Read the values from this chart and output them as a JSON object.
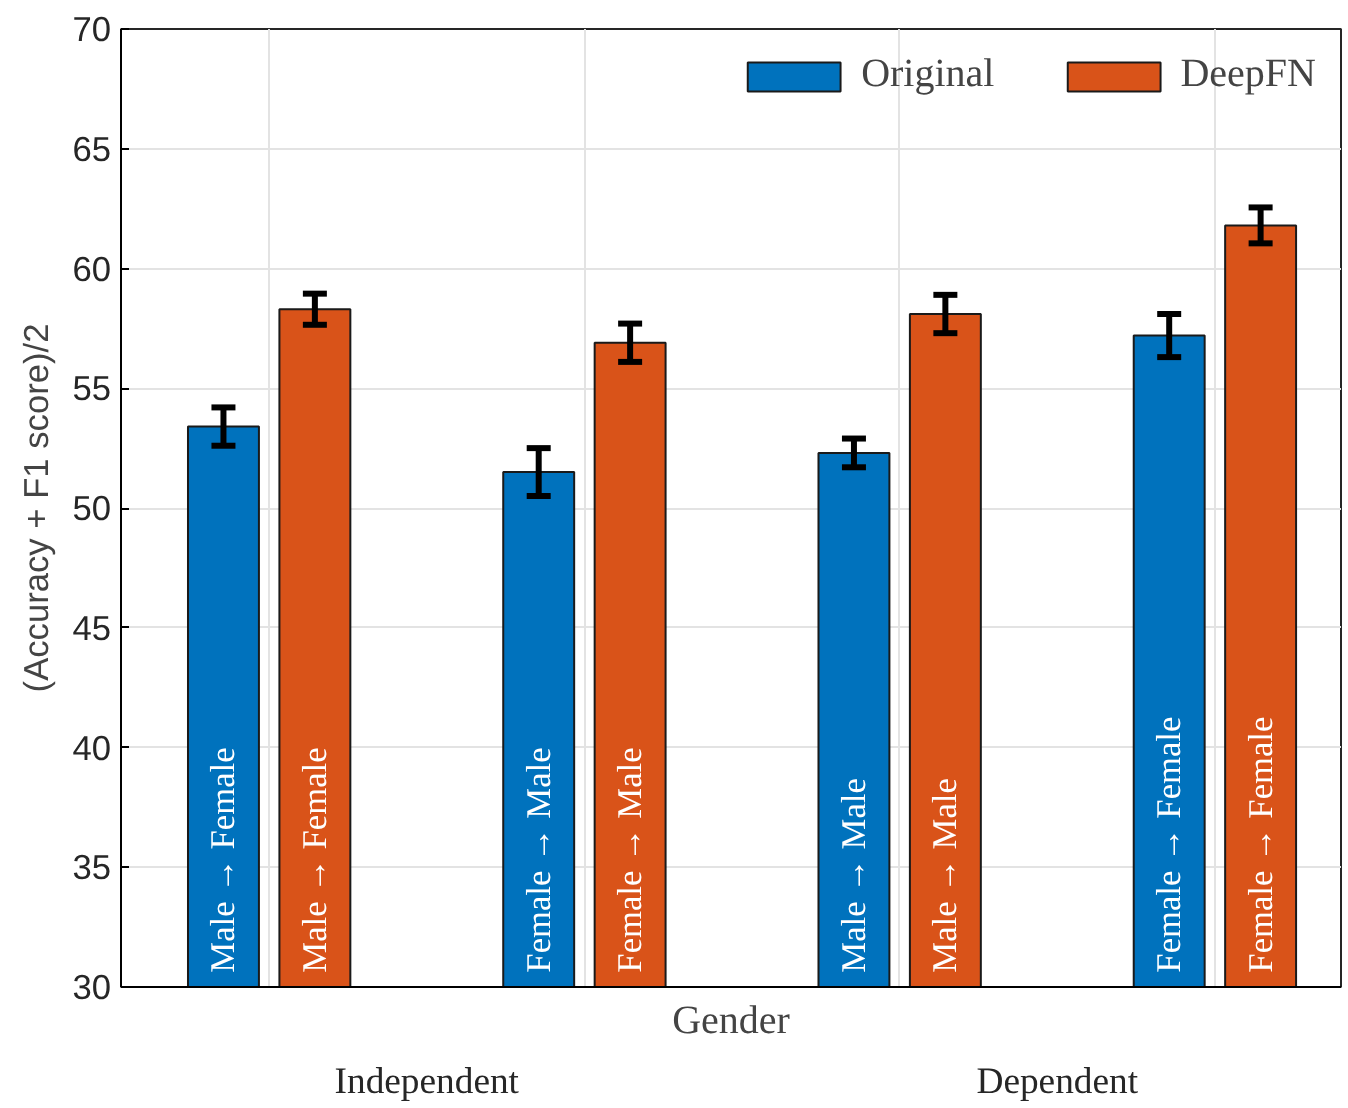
{
  "chart_data": {
    "type": "bar",
    "xlabel": "Gender",
    "ylabel": "(Accuracy + F1 score)/2",
    "categories": [
      "Male → Female",
      "Female → Male",
      "Male → Male",
      "Female → Female"
    ],
    "series": [
      {
        "name": "Original",
        "color": "#0072bd",
        "values": [
          53.4,
          51.5,
          52.3,
          57.2
        ],
        "errors": [
          0.8,
          1.0,
          0.6,
          0.9
        ]
      },
      {
        "name": "DeepFN",
        "color": "#d95319",
        "values": [
          58.3,
          56.9,
          58.1,
          61.8
        ],
        "errors": [
          0.65,
          0.8,
          0.8,
          0.75
        ]
      }
    ],
    "ylim": [
      30,
      70
    ],
    "yticks": [
      30,
      35,
      40,
      45,
      50,
      55,
      60,
      65,
      70
    ],
    "annotations": [
      "Independent",
      "Dependent"
    ],
    "grid": true,
    "legend": "top right"
  }
}
